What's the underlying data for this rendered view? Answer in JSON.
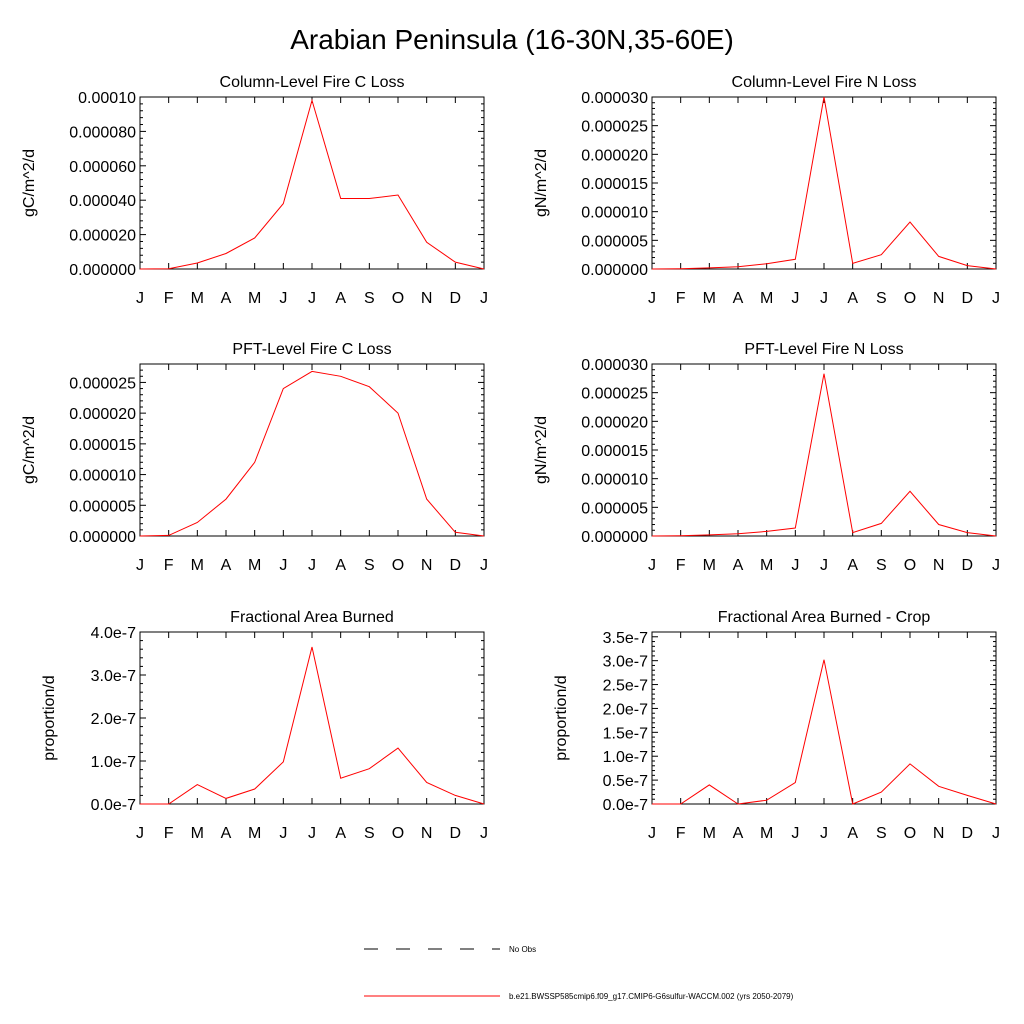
{
  "figure_title": "Arabian Peninsula (16-30N,35-60E)",
  "colors": {
    "model_line": "#ff0000",
    "obs_line": "#000000",
    "axes": "#000000"
  },
  "chart_data": [
    {
      "type": "line",
      "title": "Column-Level Fire C Loss",
      "xlabel": "",
      "ylabel": "gC/m^2/d",
      "x": [
        "J",
        "F",
        "M",
        "A",
        "M",
        "J",
        "J",
        "A",
        "S",
        "O",
        "N",
        "D",
        "J"
      ],
      "ylim": [
        0,
        0.0001
      ],
      "yticks": [
        0,
        2e-05,
        4e-05,
        6e-05,
        8e-05,
        0.0001
      ],
      "ytick_labels": [
        "0.000000",
        "0.000020",
        "0.000040",
        "0.000060",
        "0.000080",
        "0.00010"
      ],
      "series": [
        {
          "name": "b.e21.BWSSP585cmip6.f09_g17.CMIP6-G6sulfur-WACCM.002 (yrs 2050-2079)",
          "values": [
            0,
            2e-07,
            3.5e-06,
            9e-06,
            1.8e-05,
            3.8e-05,
            9.8e-05,
            4.1e-05,
            4.1e-05,
            4.3e-05,
            1.55e-05,
            4e-06,
            0
          ]
        }
      ]
    },
    {
      "type": "line",
      "title": "Column-Level Fire N Loss",
      "xlabel": "",
      "ylabel": "gN/m^2/d",
      "x": [
        "J",
        "F",
        "M",
        "A",
        "M",
        "J",
        "J",
        "A",
        "S",
        "O",
        "N",
        "D",
        "J"
      ],
      "ylim": [
        0,
        3e-05
      ],
      "yticks": [
        0,
        5e-06,
        1e-05,
        1.5e-05,
        2e-05,
        2.5e-05,
        3e-05
      ],
      "ytick_labels": [
        "0.000000",
        "0.000005",
        "0.000010",
        "0.000015",
        "0.000020",
        "0.000025",
        "0.000030"
      ],
      "series": [
        {
          "name": "b.e21.BWSSP585cmip6.f09_g17.CMIP6-G6sulfur-WACCM.002 (yrs 2050-2079)",
          "values": [
            0,
            5e-08,
            2e-07,
            4e-07,
            9e-07,
            1.7e-06,
            3e-05,
            1e-06,
            2.5e-06,
            8.2e-06,
            2.2e-06,
            6e-07,
            0
          ]
        }
      ]
    },
    {
      "type": "line",
      "title": "PFT-Level Fire C Loss",
      "xlabel": "",
      "ylabel": "gC/m^2/d",
      "x": [
        "J",
        "F",
        "M",
        "A",
        "M",
        "J",
        "J",
        "A",
        "S",
        "O",
        "N",
        "D",
        "J"
      ],
      "ylim": [
        0,
        2.8e-05
      ],
      "yticks": [
        0,
        5e-06,
        1e-05,
        1.5e-05,
        2e-05,
        2.5e-05
      ],
      "ytick_labels": [
        "0.000000",
        "0.000005",
        "0.000010",
        "0.000015",
        "0.000020",
        "0.000025"
      ],
      "series": [
        {
          "name": "b.e21.BWSSP585cmip6.f09_g17.CMIP6-G6sulfur-WACCM.002 (yrs 2050-2079)",
          "values": [
            0,
            1e-07,
            2.2e-06,
            6e-06,
            1.2e-05,
            2.4e-05,
            2.68e-05,
            2.6e-05,
            2.43e-05,
            2e-05,
            6e-06,
            6e-07,
            0
          ]
        }
      ]
    },
    {
      "type": "line",
      "title": "PFT-Level Fire N Loss",
      "xlabel": "",
      "ylabel": "gN/m^2/d",
      "x": [
        "J",
        "F",
        "M",
        "A",
        "M",
        "J",
        "J",
        "A",
        "S",
        "O",
        "N",
        "D",
        "J"
      ],
      "ylim": [
        0,
        3e-05
      ],
      "yticks": [
        0,
        5e-06,
        1e-05,
        1.5e-05,
        2e-05,
        2.5e-05,
        3e-05
      ],
      "ytick_labels": [
        "0.000000",
        "0.000005",
        "0.000010",
        "0.000015",
        "0.000020",
        "0.000025",
        "0.000030"
      ],
      "series": [
        {
          "name": "b.e21.BWSSP585cmip6.f09_g17.CMIP6-G6sulfur-WACCM.002 (yrs 2050-2079)",
          "values": [
            0,
            5e-08,
            2e-07,
            4e-07,
            8e-07,
            1.4e-06,
            2.83e-05,
            6e-07,
            2.2e-06,
            7.8e-06,
            2e-06,
            6e-07,
            0
          ]
        }
      ]
    },
    {
      "type": "line",
      "title": "Fractional Area Burned",
      "xlabel": "",
      "ylabel": "proportion/d",
      "x": [
        "J",
        "F",
        "M",
        "A",
        "M",
        "J",
        "J",
        "A",
        "S",
        "O",
        "N",
        "D",
        "J"
      ],
      "ylim": [
        0,
        4e-07
      ],
      "yticks": [
        0,
        1e-07,
        2e-07,
        3e-07,
        4e-07
      ],
      "ytick_labels": [
        "0.0e-7",
        "1.0e-7",
        "2.0e-7",
        "3.0e-7",
        "4.0e-7"
      ],
      "series": [
        {
          "name": "b.e21.BWSSP585cmip6.f09_g17.CMIP6-G6sulfur-WACCM.002 (yrs 2050-2079)",
          "values": [
            0,
            0,
            4.5e-08,
            1.3e-08,
            3.5e-08,
            9.8e-08,
            3.65e-07,
            6e-08,
            8.2e-08,
            1.3e-07,
            5e-08,
            2e-08,
            0
          ]
        }
      ]
    },
    {
      "type": "line",
      "title": "Fractional Area Burned - Crop",
      "xlabel": "",
      "ylabel": "proportion/d",
      "x": [
        "J",
        "F",
        "M",
        "A",
        "M",
        "J",
        "J",
        "A",
        "S",
        "O",
        "N",
        "D",
        "J"
      ],
      "ylim": [
        0,
        3.6e-07
      ],
      "yticks": [
        0,
        5e-08,
        1e-07,
        1.5e-07,
        2e-07,
        2.5e-07,
        3e-07,
        3.5e-07
      ],
      "ytick_labels": [
        "0.0e-7",
        "0.5e-7",
        "1.0e-7",
        "1.5e-7",
        "2.0e-7",
        "2.5e-7",
        "3.0e-7",
        "3.5e-7"
      ],
      "series": [
        {
          "name": "b.e21.BWSSP585cmip6.f09_g17.CMIP6-G6sulfur-WACCM.002 (yrs 2050-2079)",
          "values": [
            0,
            0,
            4e-08,
            0,
            8e-09,
            4.5e-08,
            3.02e-07,
            0,
            2.5e-08,
            8.4e-08,
            3.7e-08,
            1.8e-08,
            0
          ]
        }
      ]
    }
  ],
  "legend": {
    "placement": "bottom-center",
    "entries": [
      {
        "label": "No Obs",
        "style": "dashed",
        "color": "#000000"
      },
      {
        "label": "b.e21.BWSSP585cmip6.f09_g17.CMIP6-G6sulfur-WACCM.002 (yrs 2050-2079)",
        "style": "solid",
        "color": "#ff0000"
      }
    ]
  }
}
